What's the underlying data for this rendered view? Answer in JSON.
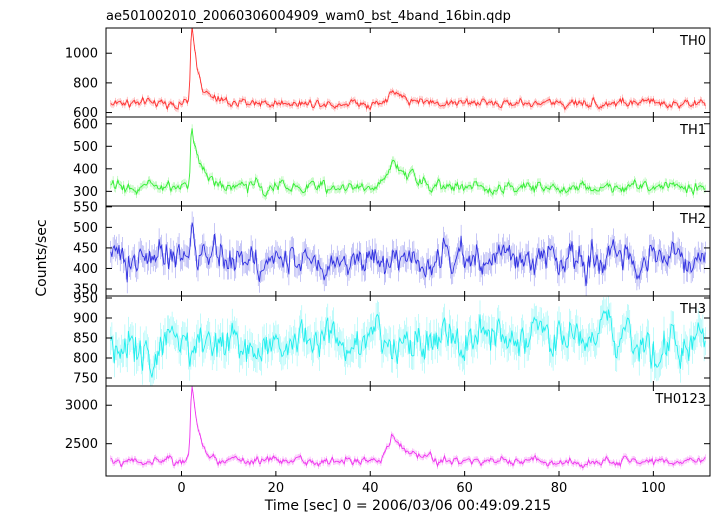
{
  "chart_data": {
    "type": "line",
    "title": "ae501002010_20060306004909_wam0_bst_4band_16bin.qdp",
    "xlabel": "Time [sec] 0 = 2006/03/06 00:49:09.215",
    "ylabel": "Counts/sec",
    "xlim": [
      -16,
      112
    ],
    "xticks": [
      0,
      20,
      40,
      60,
      80,
      100
    ],
    "x_start": -15,
    "x_end": 111,
    "bin_width_sec": 0.25,
    "grid": false,
    "legend": "none",
    "panels": [
      {
        "name": "TH0",
        "color": "#ff3030",
        "ylim": [
          570,
          1170
        ],
        "yticks": [
          600,
          800,
          1000
        ],
        "baseline": 665,
        "noise": 30,
        "features": [
          {
            "time": 2.2,
            "amplitude": 500,
            "rise_sec": 0.4,
            "decay_sec": 1.6
          },
          {
            "time": 45,
            "amplitude": 70,
            "rise_sec": 1.5,
            "decay_sec": 3
          }
        ]
      },
      {
        "name": "TH1",
        "color": "#33ee33",
        "ylim": [
          235,
          630
        ],
        "yticks": [
          300,
          400,
          500,
          600
        ],
        "baseline": 320,
        "noise": 25,
        "features": [
          {
            "time": 2.2,
            "amplitude": 280,
            "rise_sec": 0.4,
            "decay_sec": 1.8
          },
          {
            "time": 45,
            "amplitude": 140,
            "rise_sec": 1.5,
            "decay_sec": 3
          }
        ]
      },
      {
        "name": "TH2",
        "color": "#3030e0",
        "ylim": [
          333,
          552
        ],
        "yticks": [
          350,
          400,
          450,
          500,
          550
        ],
        "baseline": 425,
        "noise": 38,
        "features": [
          {
            "time": 2.2,
            "amplitude": 100,
            "rise_sec": 0.3,
            "decay_sec": 0.8
          }
        ]
      },
      {
        "name": "TH3",
        "color": "#20eeee",
        "ylim": [
          730,
          955
        ],
        "yticks": [
          750,
          800,
          850,
          900,
          950
        ],
        "baseline": 840,
        "noise": 50,
        "features": []
      },
      {
        "name": "TH0123",
        "color": "#ee33ee",
        "ylim": [
          2080,
          3250
        ],
        "yticks": [
          2500,
          3000
        ],
        "baseline": 2270,
        "noise": 55,
        "features": [
          {
            "time": 2.2,
            "amplitude": 1000,
            "rise_sec": 0.4,
            "decay_sec": 1.6
          },
          {
            "time": 45,
            "amplitude": 320,
            "rise_sec": 1.5,
            "decay_sec": 3
          }
        ]
      }
    ]
  }
}
